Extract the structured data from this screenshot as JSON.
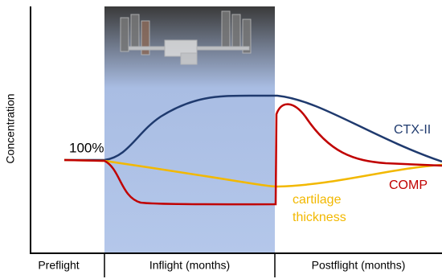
{
  "y_axis_label": "Concentration",
  "baseline_label": "100%",
  "curve_labels": {
    "ctx": "CTX-II",
    "comp": "COMP",
    "cartilage": [
      "cartilage",
      "thickness"
    ]
  },
  "phases": [
    "Preflight",
    "Inflight (months)",
    "Postflight (months)"
  ]
}
